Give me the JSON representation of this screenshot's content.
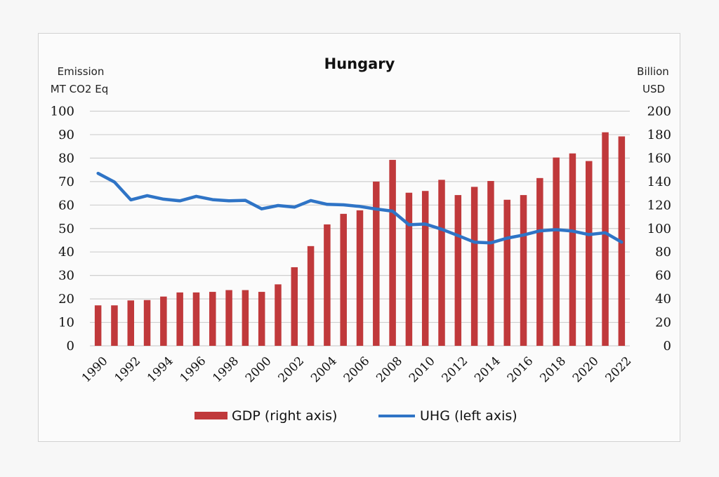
{
  "chart_data": {
    "type": "bar",
    "title": "Hungary",
    "ylabel_left": [
      "Emission",
      "MT CO2 Eq"
    ],
    "ylabel_right": [
      "Billion",
      "USD"
    ],
    "xlabel": "",
    "categories": [
      1990,
      1991,
      1992,
      1993,
      1994,
      1995,
      1996,
      1997,
      1998,
      1999,
      2000,
      2001,
      2002,
      2003,
      2004,
      2005,
      2006,
      2007,
      2008,
      2009,
      2010,
      2011,
      2012,
      2013,
      2014,
      2015,
      2016,
      2017,
      2018,
      2019,
      2020,
      2021,
      2022
    ],
    "x_tick_labels": [
      "1990",
      "1992",
      "1994",
      "1996",
      "1998",
      "2000",
      "2002",
      "2004",
      "2006",
      "2008",
      "2010",
      "2012",
      "2014",
      "2016",
      "2018",
      "2020",
      "2022"
    ],
    "left_ylim": [
      0,
      100
    ],
    "left_ticks": [
      "0",
      "10",
      "20",
      "30",
      "40",
      "50",
      "60",
      "70",
      "80",
      "90",
      "100"
    ],
    "right_ylim": [
      0,
      200
    ],
    "right_ticks": [
      "0",
      "20",
      "40",
      "60",
      "80",
      "100",
      "120",
      "140",
      "160",
      "180",
      "200"
    ],
    "grid": true,
    "legend_position": "bottom",
    "series": [
      {
        "name": "GDP (right axis)",
        "type": "bar",
        "axis": "right",
        "color": "#c0393b",
        "values": [
          34.5,
          34.5,
          38.7,
          39,
          42,
          45.5,
          45.5,
          46,
          47.5,
          47.5,
          46,
          52.4,
          67,
          85,
          103.5,
          112.5,
          115.5,
          140,
          158.5,
          130.5,
          132,
          141.5,
          128.5,
          135.5,
          140.5,
          124.5,
          128.5,
          143,
          160.5,
          164,
          157.5,
          182,
          178.5
        ]
      },
      {
        "name": "UHG (left axis)",
        "type": "line",
        "axis": "left",
        "color": "#2f74c6",
        "values": [
          73.5,
          69.8,
          62.2,
          64,
          62.5,
          61.8,
          63.7,
          62.3,
          61.8,
          62,
          58.4,
          59.8,
          59.1,
          61.9,
          60.3,
          60.1,
          59.4,
          58.3,
          57.4,
          51.6,
          51.9,
          49.7,
          47,
          44.2,
          43.9,
          45.9,
          47.2,
          49,
          49.5,
          48.9,
          47.4,
          48.2,
          44.2
        ]
      }
    ]
  }
}
